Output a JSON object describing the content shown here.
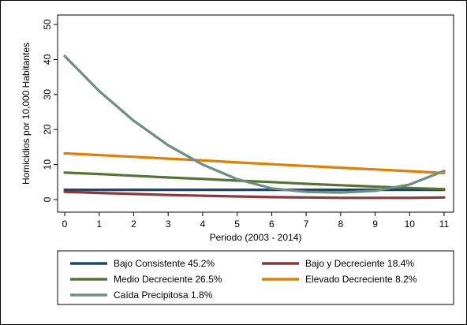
{
  "chart_data": {
    "type": "line",
    "title": "",
    "xlabel": "Periodo (2003 - 2014)",
    "ylabel": "Homicidios por 10,000 Habitantes",
    "x": [
      0,
      1,
      2,
      3,
      4,
      5,
      6,
      7,
      8,
      9,
      10,
      11
    ],
    "xlim": [
      0,
      11
    ],
    "ylim": [
      0,
      50
    ],
    "xticks": [
      "0",
      "1",
      "2",
      "3",
      "4",
      "5",
      "6",
      "7",
      "8",
      "9",
      "10",
      "11"
    ],
    "yticks": [
      "0",
      "10",
      "20",
      "30",
      "40",
      "50"
    ],
    "grid": false,
    "legend_placement": "bottom",
    "series": [
      {
        "name": "Bajo Consistente   45.2%",
        "color": "#1a476f",
        "values": [
          2.8,
          2.8,
          2.8,
          2.8,
          2.8,
          2.8,
          2.8,
          2.8,
          2.8,
          2.8,
          2.8,
          2.8
        ]
      },
      {
        "name": "Bajo y Decreciente 18.4%",
        "color": "#90353b",
        "values": [
          2.2,
          1.9,
          1.6,
          1.3,
          1.1,
          0.9,
          0.7,
          0.6,
          0.5,
          0.5,
          0.5,
          0.6
        ]
      },
      {
        "name": "Medio Decreciente 26.5%",
        "color": "#55752f",
        "values": [
          7.7,
          7.3,
          6.8,
          6.3,
          5.9,
          5.4,
          5.0,
          4.5,
          4.1,
          3.7,
          3.3,
          3.0
        ]
      },
      {
        "name": "Elevado Decreciente 8.2%",
        "color": "#e37e00",
        "values": [
          13.2,
          12.7,
          12.2,
          11.7,
          11.2,
          10.6,
          10.1,
          9.6,
          9.1,
          8.6,
          8.1,
          7.6
        ]
      },
      {
        "name": "Caída Precipitosa 1.8%",
        "color": "#6e8e84",
        "values": [
          41.0,
          31.0,
          22.5,
          15.5,
          10.0,
          5.8,
          3.2,
          2.2,
          2.0,
          2.5,
          4.3,
          8.2
        ]
      }
    ]
  }
}
